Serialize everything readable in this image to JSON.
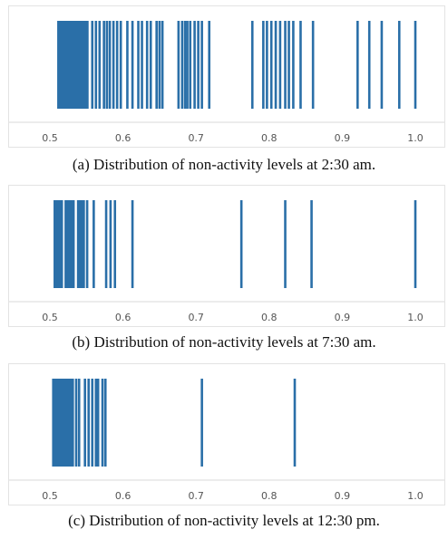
{
  "accent_color": "#2a6fa8",
  "chart_data": [
    {
      "type": "rug",
      "caption": "(a) Distribution of non-activity levels at 2:30 am.",
      "xlim": [
        0.45,
        1.03
      ],
      "xticks": [
        "0.5",
        "0.6",
        "0.7",
        "0.8",
        "0.9",
        "1.0"
      ],
      "spans": [
        [
          0.51,
          0.553
        ]
      ],
      "values": [
        0.558,
        0.563,
        0.568,
        0.574,
        0.578,
        0.582,
        0.587,
        0.592,
        0.597,
        0.606,
        0.613,
        0.621,
        0.626,
        0.633,
        0.638,
        0.646,
        0.65,
        0.654,
        0.676,
        0.681,
        0.685,
        0.688,
        0.692,
        0.698,
        0.703,
        0.708,
        0.718,
        0.777,
        0.792,
        0.797,
        0.803,
        0.809,
        0.815,
        0.822,
        0.827,
        0.833,
        0.843,
        0.86,
        0.921,
        0.937,
        0.954,
        0.978,
        1.0
      ]
    },
    {
      "type": "rug",
      "caption": "(b) Distribution of non-activity levels at 7:30 am.",
      "xlim": [
        0.45,
        1.03
      ],
      "xticks": [
        "0.5",
        "0.6",
        "0.7",
        "0.8",
        "0.9",
        "1.0"
      ],
      "spans": [
        [
          0.505,
          0.518
        ],
        [
          0.52,
          0.534
        ],
        [
          0.537,
          0.548
        ]
      ],
      "values": [
        0.551,
        0.56,
        0.577,
        0.583,
        0.589,
        0.613,
        0.762,
        0.822,
        0.858,
        1.0
      ]
    },
    {
      "type": "rug",
      "caption": "(c) Distribution of non-activity levels at 12:30 pm.",
      "xlim": [
        0.45,
        1.03
      ],
      "xticks": [
        "0.5",
        "0.6",
        "0.7",
        "0.8",
        "0.9",
        "1.0"
      ],
      "spans": [
        [
          0.503,
          0.533
        ]
      ],
      "values": [
        0.536,
        0.54,
        0.548,
        0.553,
        0.558,
        0.563,
        0.566,
        0.572,
        0.576,
        0.708,
        0.835
      ]
    }
  ]
}
